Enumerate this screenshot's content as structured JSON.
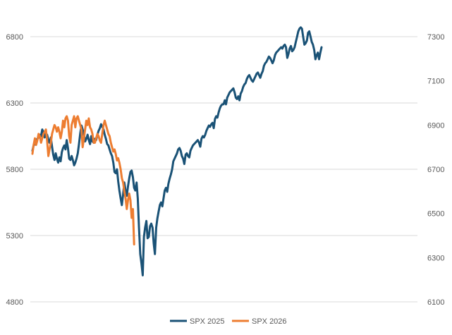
{
  "chart_data": {
    "type": "line",
    "grid": true,
    "legend_position": "bottom",
    "y_left": {
      "range": [
        4800,
        6800
      ],
      "ticks": [
        "4800",
        "5300",
        "5800",
        "6300",
        "6800"
      ]
    },
    "y_right": {
      "range": [
        6100,
        7300
      ],
      "ticks": [
        "6100",
        "6300",
        "6500",
        "6700",
        "6900",
        "7100",
        "7300"
      ]
    },
    "series": [
      {
        "name": "SPX 2025",
        "axis": "left",
        "color": "#1a5276",
        "values": [
          5940,
          5980,
          5990,
          6020,
          6030,
          6040,
          6060,
          6050,
          6100,
          6080,
          6040,
          6070,
          6060,
          6020,
          6000,
          6040,
          5970,
          5910,
          5870,
          5920,
          5880,
          5850,
          5890,
          5860,
          5930,
          5960,
          5980,
          5950,
          6020,
          5960,
          5880,
          5870,
          5900,
          5870,
          5830,
          5850,
          5880,
          5920,
          5990,
          6070,
          6130,
          6100,
          6060,
          6010,
          6030,
          6060,
          6020,
          5990,
          6050,
          6010,
          6000,
          6030,
          6020,
          6060,
          6090,
          6110,
          6140,
          6120,
          6100,
          6060,
          6030,
          5990,
          5980,
          5950,
          5920,
          5900,
          5850,
          5780,
          5770,
          5800,
          5710,
          5640,
          5580,
          5530,
          5610,
          5700,
          5640,
          5600,
          5670,
          5730,
          5780,
          5790,
          5740,
          5660,
          5640,
          5700,
          5580,
          5360,
          5160,
          5090,
          5000,
          5290,
          5360,
          5410,
          5280,
          5290,
          5370,
          5390,
          5360,
          5240,
          5160,
          5360,
          5430,
          5480,
          5530,
          5550,
          5520,
          5580,
          5640,
          5660,
          5630,
          5690,
          5730,
          5760,
          5800,
          5860,
          5880,
          5900,
          5920,
          5950,
          5960,
          5940,
          5900,
          5880,
          5840,
          5910,
          5920,
          5900,
          5890,
          5940,
          5960,
          5980,
          5990,
          6000,
          6010,
          6020,
          6000,
          5970,
          6030,
          6050,
          6040,
          6060,
          6090,
          6110,
          6130,
          6120,
          6140,
          6150,
          6110,
          6180,
          6200,
          6190,
          6230,
          6260,
          6280,
          6290,
          6290,
          6320,
          6290,
          6340,
          6360,
          6380,
          6390,
          6400,
          6410,
          6380,
          6340,
          6330,
          6350,
          6320,
          6370,
          6390,
          6420,
          6440,
          6450,
          6480,
          6500,
          6510,
          6490,
          6470,
          6460,
          6480,
          6500,
          6520,
          6530,
          6510,
          6490,
          6520,
          6540,
          6580,
          6600,
          6610,
          6630,
          6650,
          6640,
          6620,
          6600,
          6620,
          6660,
          6680,
          6690,
          6700,
          6710,
          6720,
          6710,
          6730,
          6740,
          6720,
          6640,
          6670,
          6710,
          6730,
          6690,
          6700,
          6720,
          6760,
          6800,
          6840,
          6860,
          6870,
          6860,
          6800,
          6740,
          6750,
          6770,
          6830,
          6840,
          6800,
          6760,
          6740,
          6700,
          6630,
          6660,
          6680,
          6630,
          6680,
          6720
        ]
      },
      {
        "name": "SPX 2026",
        "axis": "right",
        "color": "#ed7d31",
        "values": [
          6770,
          6810,
          6840,
          6810,
          6830,
          6860,
          6850,
          6820,
          6840,
          6860,
          6870,
          6880,
          6830,
          6760,
          6790,
          6820,
          6860,
          6880,
          6900,
          6890,
          6870,
          6890,
          6870,
          6840,
          6870,
          6920,
          6890,
          6930,
          6940,
          6920,
          6850,
          6820,
          6900,
          6920,
          6940,
          6890,
          6930,
          6940,
          6920,
          6900,
          6880,
          6800,
          6840,
          6880,
          6920,
          6900,
          6930,
          6890,
          6880,
          6860,
          6820,
          6820,
          6840,
          6860,
          6850,
          6830,
          6820,
          6860,
          6900,
          6920,
          6900,
          6880,
          6860,
          6850,
          6820,
          6800,
          6780,
          6790,
          6770,
          6740,
          6750,
          6730,
          6700,
          6660,
          6640,
          6600,
          6570,
          6520,
          6560,
          6590,
          6560,
          6480,
          6520,
          6360
        ]
      }
    ]
  }
}
